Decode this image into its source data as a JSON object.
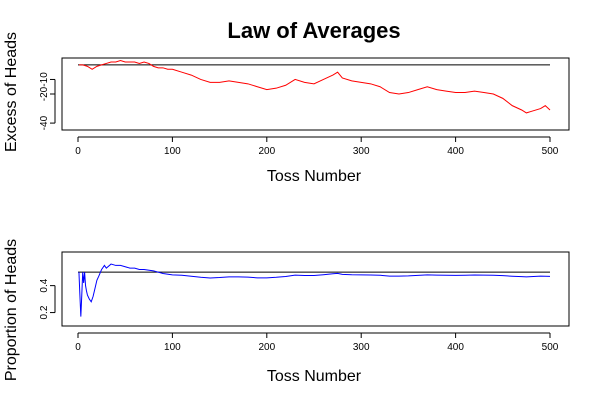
{
  "title": "Law of Averages",
  "chart_data": [
    {
      "type": "line",
      "title": "Law of Averages",
      "xlabel": "Toss Number",
      "ylabel": "Excess of Heads",
      "xlim": [
        0,
        500
      ],
      "ylim": [
        -42,
        2
      ],
      "xticks": [
        0,
        100,
        200,
        300,
        400,
        500
      ],
      "yticks": [
        -40,
        -20,
        -10
      ],
      "reference_y": 0,
      "series": [
        {
          "color": "#ff0000",
          "x": [
            1,
            5,
            10,
            15,
            20,
            25,
            30,
            35,
            40,
            45,
            50,
            55,
            60,
            65,
            70,
            75,
            80,
            85,
            90,
            95,
            100,
            110,
            120,
            130,
            140,
            150,
            160,
            170,
            180,
            190,
            200,
            210,
            220,
            230,
            240,
            250,
            260,
            270,
            275,
            280,
            290,
            300,
            310,
            320,
            330,
            340,
            350,
            360,
            370,
            380,
            390,
            400,
            410,
            420,
            430,
            440,
            450,
            460,
            470,
            475,
            480,
            490,
            495,
            500
          ],
          "y": [
            0,
            0,
            -1,
            -3,
            -1,
            0,
            1,
            2,
            2,
            3,
            2,
            2,
            2,
            1,
            2,
            1,
            -1,
            -2,
            -2,
            -3,
            -3,
            -5,
            -7,
            -10,
            -12,
            -12,
            -11,
            -12,
            -13,
            -15,
            -17,
            -16,
            -14,
            -10,
            -12,
            -13,
            -10,
            -7,
            -5,
            -9,
            -11,
            -12,
            -13,
            -15,
            -19,
            -20,
            -19,
            -17,
            -15,
            -17,
            -18,
            -19,
            -19,
            -18,
            -19,
            -20,
            -23,
            -28,
            -31,
            -33,
            -32,
            -30,
            -28,
            -31
          ]
        }
      ]
    },
    {
      "type": "line",
      "xlabel": "Toss Number",
      "ylabel": "Proportion of Heads",
      "xlim": [
        0,
        500
      ],
      "ylim": [
        0.13,
        0.62
      ],
      "xticks": [
        0,
        100,
        200,
        300,
        400,
        500
      ],
      "yticks": [
        0.2,
        0.4
      ],
      "reference_y": 0.5,
      "series": [
        {
          "color": "#0000ff",
          "x": [
            1,
            2,
            3,
            4,
            5,
            6,
            7,
            8,
            9,
            10,
            12,
            14,
            16,
            18,
            20,
            22,
            25,
            28,
            30,
            35,
            40,
            45,
            50,
            55,
            60,
            65,
            70,
            80,
            90,
            100,
            110,
            120,
            130,
            140,
            150,
            160,
            170,
            180,
            190,
            200,
            210,
            220,
            230,
            240,
            250,
            260,
            270,
            275,
            280,
            290,
            300,
            310,
            320,
            330,
            340,
            350,
            360,
            370,
            380,
            390,
            400,
            410,
            420,
            430,
            440,
            450,
            460,
            470,
            475,
            480,
            490,
            500
          ],
          "y": [
            0.5,
            0.33,
            0.17,
            0.33,
            0.5,
            0.42,
            0.5,
            0.4,
            0.36,
            0.33,
            0.3,
            0.28,
            0.32,
            0.38,
            0.44,
            0.47,
            0.52,
            0.55,
            0.53,
            0.56,
            0.55,
            0.55,
            0.54,
            0.53,
            0.53,
            0.52,
            0.52,
            0.51,
            0.49,
            0.48,
            0.477,
            0.47,
            0.462,
            0.457,
            0.46,
            0.465,
            0.465,
            0.463,
            0.458,
            0.458,
            0.462,
            0.468,
            0.478,
            0.475,
            0.475,
            0.481,
            0.488,
            0.491,
            0.484,
            0.481,
            0.48,
            0.479,
            0.477,
            0.471,
            0.471,
            0.472,
            0.476,
            0.48,
            0.478,
            0.477,
            0.476,
            0.477,
            0.479,
            0.478,
            0.477,
            0.474,
            0.47,
            0.467,
            0.465,
            0.467,
            0.471,
            0.469
          ]
        }
      ]
    }
  ]
}
